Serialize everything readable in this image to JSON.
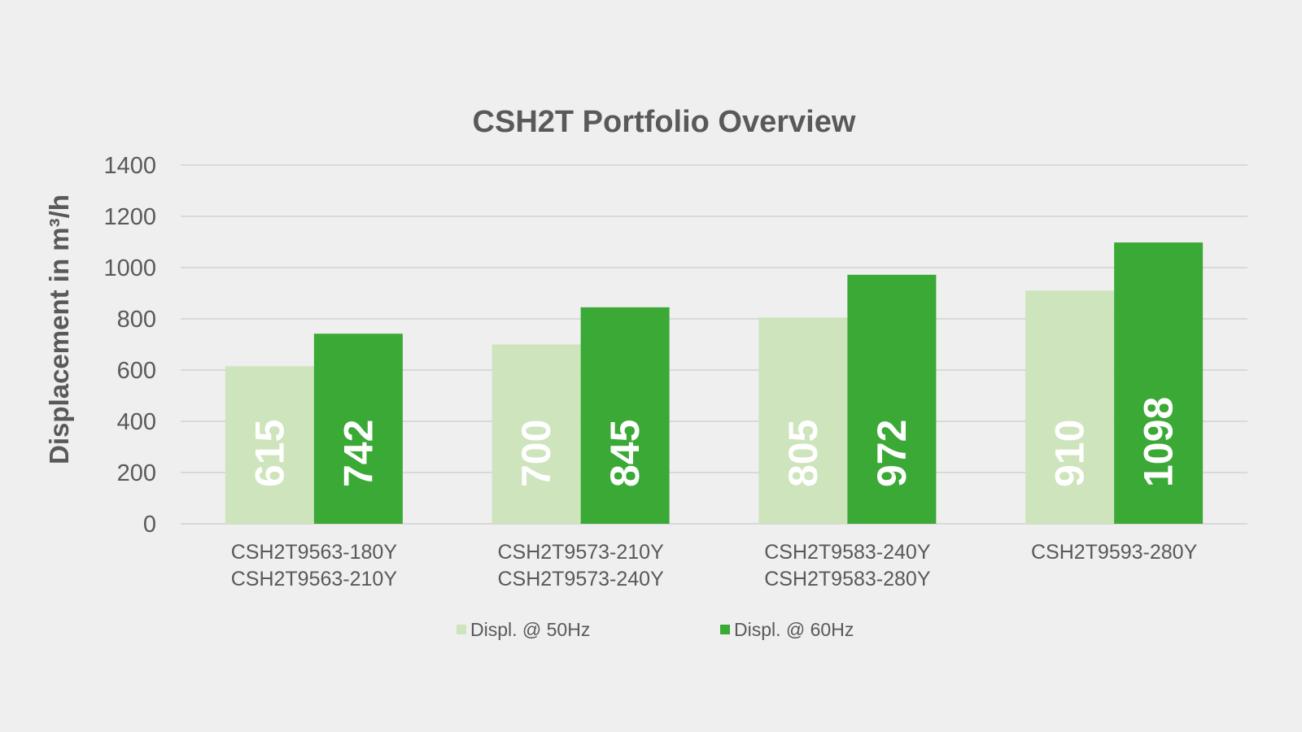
{
  "chart_data": {
    "type": "bar",
    "title": "CSH2T Portfolio Overview",
    "xlabel": "",
    "ylabel": "Displacement in m³/h",
    "ylim": [
      0,
      1400
    ],
    "yticks": [
      "0",
      "200",
      "400",
      "600",
      "800",
      "1000",
      "1200",
      "1400"
    ],
    "grid": true,
    "legend_position": "bottom",
    "categories": [
      [
        "CSH2T9563-180Y",
        "CSH2T9563-210Y"
      ],
      [
        "CSH2T9573-210Y",
        "CSH2T9573-240Y"
      ],
      [
        "CSH2T9583-240Y",
        "CSH2T9583-280Y"
      ],
      [
        "CSH2T9593-280Y"
      ]
    ],
    "series": [
      {
        "name": "Displ. @ 50Hz",
        "values": [
          615,
          700,
          805,
          910
        ],
        "color": "#cde4bc"
      },
      {
        "name": "Displ. @ 60Hz",
        "values": [
          742,
          845,
          972,
          1098
        ],
        "color": "#3aa935"
      }
    ]
  },
  "colors": {
    "background": "#efefef",
    "text": "#595959",
    "grid": "#d9d9d9"
  }
}
